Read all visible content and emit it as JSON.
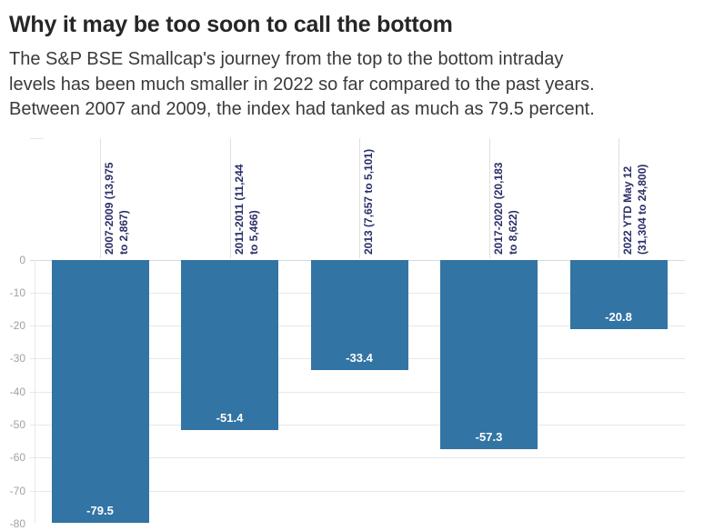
{
  "header": {
    "title": "Why it may be too soon to call the bottom",
    "subtitle": "The S&P BSE Smallcap's journey from the top to the bottom intraday\nlevels has been much smaller in 2022 so far compared to the past years.\nBetween 2007 and 2009, the index had tanked as much as 79.5 percent."
  },
  "chart_data": {
    "type": "bar",
    "title": "Why it may be too soon to call the bottom",
    "categories": [
      "2007-2009 (13,975 to 2,867)",
      "2011-2011 (11,244 to 5,466)",
      "2013 (7,657 to 5,101)",
      "2017-2020 (20,183 to 8,622)",
      "2022 YTD May 12 (31,304 to 24,800)"
    ],
    "category_label_lines": [
      [
        "2007-2009 (13,975",
        "to 2,867)"
      ],
      [
        "2011-2011 (11,244",
        "to 5,466)"
      ],
      [
        "2013 (7,657 to 5,101)"
      ],
      [
        "2017-2020 (20,183",
        "to 8,622)"
      ],
      [
        "2022 YTD May 12",
        "(31,304 to 24,800)"
      ]
    ],
    "values": [
      -79.5,
      -51.4,
      -33.4,
      -57.3,
      -20.8
    ],
    "value_labels": [
      "-79.5",
      "-51.4",
      "-33.4",
      "-57.3",
      "-20.8"
    ],
    "xlabel": "",
    "ylabel": "",
    "ylim": [
      -80,
      0
    ],
    "y_ticks": [
      0,
      -10,
      -20,
      -30,
      -40,
      -50,
      -60,
      -70,
      -80
    ],
    "grid": true,
    "legend": "none",
    "colors": {
      "bar": "#3274a4",
      "value_label": "#ffffff",
      "category_label": "#2a2e68",
      "axis_tick_label": "#a1a1a1",
      "gridline": "#e8e8e8"
    }
  }
}
